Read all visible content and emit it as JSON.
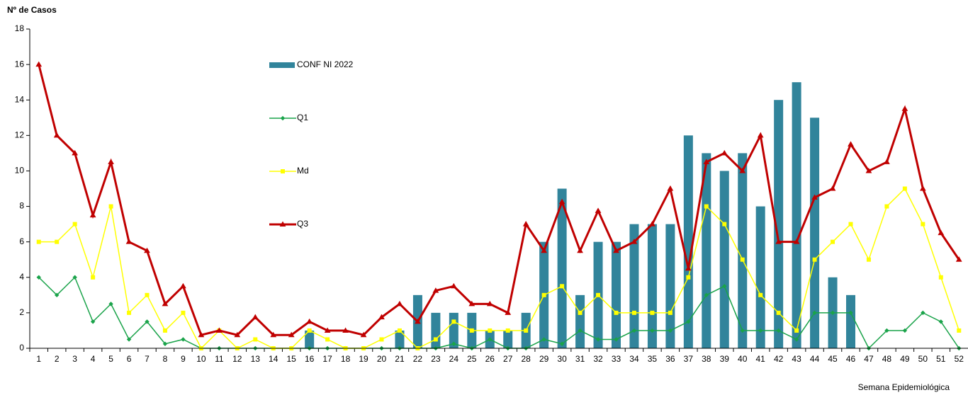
{
  "chart_data": {
    "type": "bar_line",
    "y_axis_label": "Nº de Casos",
    "x_axis_label": "Semana Epidemiológica",
    "categories": [
      1,
      2,
      3,
      4,
      5,
      6,
      7,
      8,
      9,
      10,
      11,
      12,
      13,
      14,
      15,
      16,
      17,
      18,
      19,
      20,
      21,
      22,
      23,
      24,
      25,
      26,
      27,
      28,
      29,
      30,
      31,
      32,
      33,
      34,
      35,
      36,
      37,
      38,
      39,
      40,
      41,
      42,
      43,
      44,
      45,
      46,
      47,
      48,
      49,
      50,
      51,
      52
    ],
    "ylim": [
      0,
      18
    ],
    "yticks": [
      0,
      2,
      4,
      6,
      8,
      10,
      12,
      14,
      16,
      18
    ],
    "series": [
      {
        "name": "CONF NI 2022",
        "type": "bar",
        "color": "#31849b",
        "values": [
          0,
          0,
          0,
          0,
          0,
          0,
          0,
          0,
          0,
          0,
          0,
          0,
          0,
          0,
          0,
          1,
          0,
          0,
          0,
          0,
          1,
          3,
          2,
          2,
          2,
          1,
          1,
          2,
          6,
          9,
          3,
          6,
          6,
          7,
          7,
          7,
          12,
          11,
          10,
          11,
          8,
          14,
          15,
          13,
          4,
          3,
          null,
          null,
          null,
          null,
          null,
          null
        ]
      },
      {
        "name": "Q1",
        "type": "line",
        "color": "#1aa34a",
        "marker": "diamond",
        "values": [
          4,
          3,
          4,
          1.5,
          2.5,
          0.5,
          1.5,
          0.25,
          0.5,
          0,
          0,
          0,
          0,
          0,
          0,
          0,
          0,
          0,
          0,
          0,
          0,
          0,
          0,
          0.25,
          0,
          0.5,
          0,
          0,
          0.5,
          0.25,
          1,
          0.5,
          0.5,
          1,
          1,
          1,
          1.5,
          3,
          3.5,
          1,
          1,
          1,
          0.5,
          2,
          2,
          2,
          0,
          1,
          1,
          2,
          1.5,
          0
        ]
      },
      {
        "name": "Md",
        "type": "line",
        "color": "#ffff00",
        "marker": "square",
        "values": [
          6,
          6,
          7,
          4,
          8,
          2,
          3,
          1,
          2,
          0,
          1,
          0,
          0.5,
          0,
          0,
          1,
          0.5,
          0,
          0,
          0.5,
          1,
          0,
          0.5,
          1.5,
          1,
          1,
          1,
          1,
          3,
          3.5,
          2,
          3,
          2,
          2,
          2,
          2,
          4,
          8,
          7,
          5,
          3,
          2,
          1,
          5,
          6,
          7,
          5,
          8,
          9,
          7,
          4,
          1
        ]
      },
      {
        "name": "Q3",
        "type": "line",
        "color": "#c00000",
        "marker": "triangle",
        "values": [
          16,
          12,
          11,
          7.5,
          10.5,
          6,
          5.5,
          2.5,
          3.5,
          0.75,
          1,
          0.75,
          1.75,
          0.75,
          0.75,
          1.5,
          1,
          1,
          0.75,
          1.75,
          2.5,
          1.5,
          3.25,
          3.5,
          2.5,
          2.5,
          2,
          7,
          5.5,
          8.25,
          5.5,
          7.75,
          5.5,
          6,
          7,
          9,
          4.5,
          10.5,
          11,
          10,
          12,
          6,
          6,
          8.5,
          9,
          11.5,
          10,
          10.5,
          13.5,
          9,
          6.5,
          5
        ]
      }
    ]
  }
}
